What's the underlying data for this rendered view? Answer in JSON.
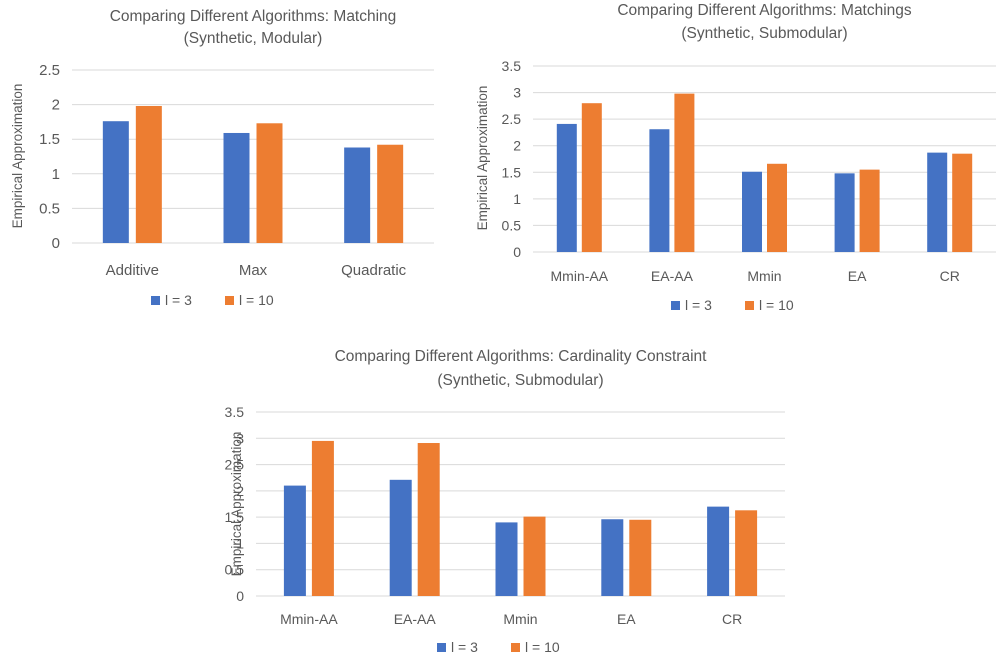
{
  "colors": {
    "series1": "#4472C4",
    "series2": "#ED7D31",
    "grid": "#D9D9D9",
    "text": "#595959"
  },
  "chart_data": [
    {
      "type": "bar",
      "title": "Comparing Different Algorithms: Matching",
      "subtitle": "(Synthetic, Modular)",
      "ylabel": "Empirical Approximation",
      "xlabel": "",
      "ylim": [
        0,
        2.5
      ],
      "yticks": [
        "0",
        "0.5",
        "1",
        "1.5",
        "2",
        "2.5"
      ],
      "categories": [
        "Additive",
        "Max",
        "Quadratic"
      ],
      "series": [
        {
          "name": "l = 3",
          "values": [
            1.76,
            1.59,
            1.38
          ]
        },
        {
          "name": "l = 10",
          "values": [
            1.98,
            1.73,
            1.42
          ]
        }
      ],
      "legend": "bottom",
      "grid": true
    },
    {
      "type": "bar",
      "title": "Comparing Different Algorithms: Matchings",
      "subtitle": "(Synthetic, Submodular)",
      "ylabel": "Empirical Approximation",
      "xlabel": "",
      "ylim": [
        0,
        3.5
      ],
      "yticks": [
        "0",
        "0.5",
        "1",
        "1.5",
        "2",
        "2.5",
        "3",
        "3.5"
      ],
      "categories": [
        "Mmin-AA",
        "EA-AA",
        "Mmin",
        "EA",
        "CR"
      ],
      "series": [
        {
          "name": "l = 3",
          "values": [
            2.41,
            2.31,
            1.51,
            1.48,
            1.87
          ]
        },
        {
          "name": "l = 10",
          "values": [
            2.8,
            2.98,
            1.66,
            1.55,
            1.85
          ]
        }
      ],
      "legend": "bottom",
      "grid": true
    },
    {
      "type": "bar",
      "title": "Comparing Different Algorithms: Cardinality Constraint",
      "subtitle": "(Synthetic, Submodular)",
      "ylabel": "Empirical Approximation",
      "xlabel": "",
      "ylim": [
        0,
        3.5
      ],
      "yticks": [
        "0",
        "0.5",
        "1",
        "1.5",
        "2",
        "2.5",
        "3",
        "3.5"
      ],
      "categories": [
        "Mmin-AA",
        "EA-AA",
        "Mmin",
        "EA",
        "CR"
      ],
      "series": [
        {
          "name": "l = 3",
          "values": [
            2.1,
            2.21,
            1.4,
            1.46,
            1.7
          ]
        },
        {
          "name": "l = 10",
          "values": [
            2.95,
            2.91,
            1.51,
            1.45,
            1.63
          ]
        }
      ],
      "legend": "bottom",
      "grid": true
    }
  ]
}
